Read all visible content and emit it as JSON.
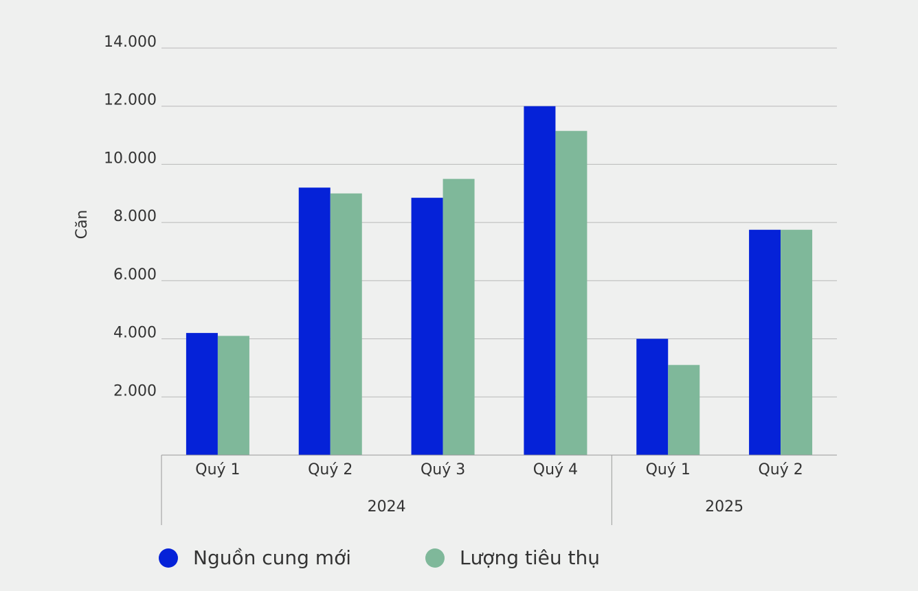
{
  "chart_data": {
    "type": "bar",
    "y_label": "Căn",
    "groups": [
      {
        "name": "2024",
        "categories": [
          "Quý 1",
          "Quý 2",
          "Quý 3",
          "Quý 4"
        ]
      },
      {
        "name": "2025",
        "categories": [
          "Quý 1",
          "Quý 2"
        ]
      }
    ],
    "series": [
      {
        "name": "Nguồn cung mới",
        "color": "#0522d8",
        "values": [
          4200,
          9200,
          8850,
          12000,
          4000,
          7750
        ]
      },
      {
        "name": "Lượng tiêu thụ",
        "color": "#7fb89a",
        "values": [
          4100,
          9000,
          9500,
          11150,
          3100,
          7750
        ]
      }
    ],
    "ylim": [
      0,
      14000
    ],
    "yticks": [
      {
        "value": 2000,
        "label": "2.000"
      },
      {
        "value": 4000,
        "label": "4.000"
      },
      {
        "value": 6000,
        "label": "6.000"
      },
      {
        "value": 8000,
        "label": "8.000"
      },
      {
        "value": 10000,
        "label": "10.000"
      },
      {
        "value": 12000,
        "label": "12.000"
      },
      {
        "value": 14000,
        "label": "14.000"
      }
    ],
    "grid": true,
    "legend": "bottom"
  }
}
